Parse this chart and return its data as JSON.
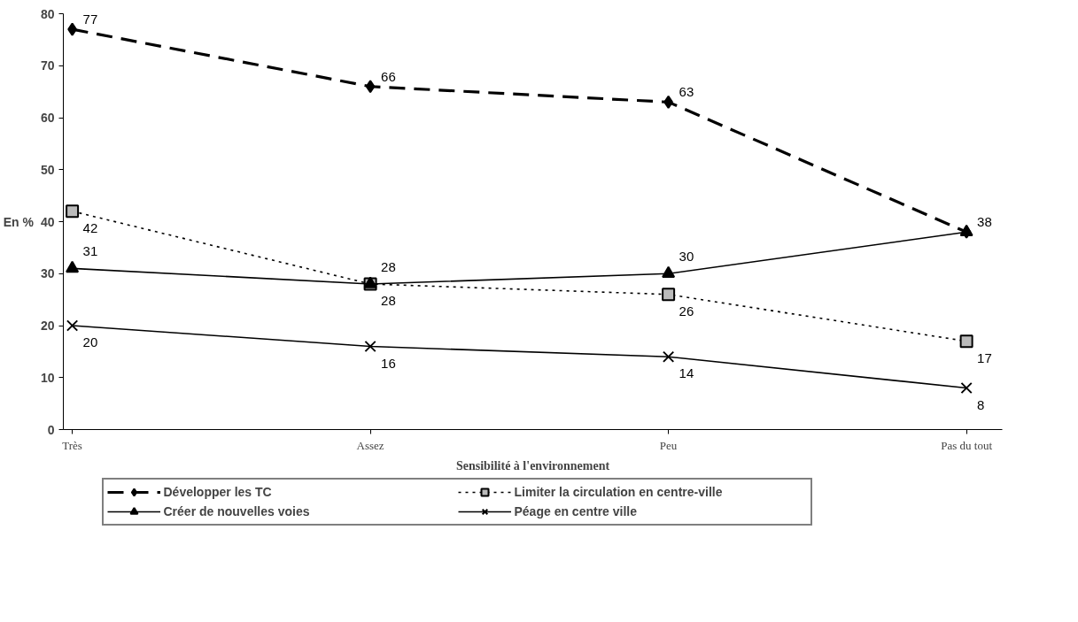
{
  "chart_data": {
    "type": "line",
    "xlabel": "Sensibilité à l'environnement",
    "ylabel": "En %",
    "categories": [
      "Très",
      "Assez",
      "Peu",
      "Pas du tout"
    ],
    "series": [
      {
        "name": "Développer les TC",
        "color": "#000000",
        "values": [
          77,
          66,
          63,
          38
        ],
        "marker": "diamond",
        "line_style": "dashed",
        "value_labels": [
          "77",
          "66",
          "63",
          "38"
        ]
      },
      {
        "name": "Limiter la circulation en centre-ville",
        "color": "#000000",
        "values": [
          42,
          28,
          26,
          17
        ],
        "marker": "square",
        "line_style": "dotted",
        "value_labels": [
          "42",
          "28",
          "26",
          "17"
        ]
      },
      {
        "name": "Créer de nouvelles voies",
        "color": "#000000",
        "values": [
          31,
          28,
          30,
          38
        ],
        "marker": "triangle",
        "line_style": "solid",
        "value_labels": [
          "31",
          "28",
          "30",
          null
        ]
      },
      {
        "name": "Péage en centre ville",
        "color": "#000000",
        "values": [
          20,
          16,
          14,
          8
        ],
        "marker": "cross",
        "line_style": "solid",
        "value_labels": [
          "20",
          "16",
          "14",
          "8"
        ]
      }
    ],
    "ylim": [
      0,
      80
    ],
    "yticks": [
      0,
      10,
      20,
      30,
      40,
      50,
      60,
      70,
      80
    ],
    "grid": false,
    "legend": "bottom"
  }
}
